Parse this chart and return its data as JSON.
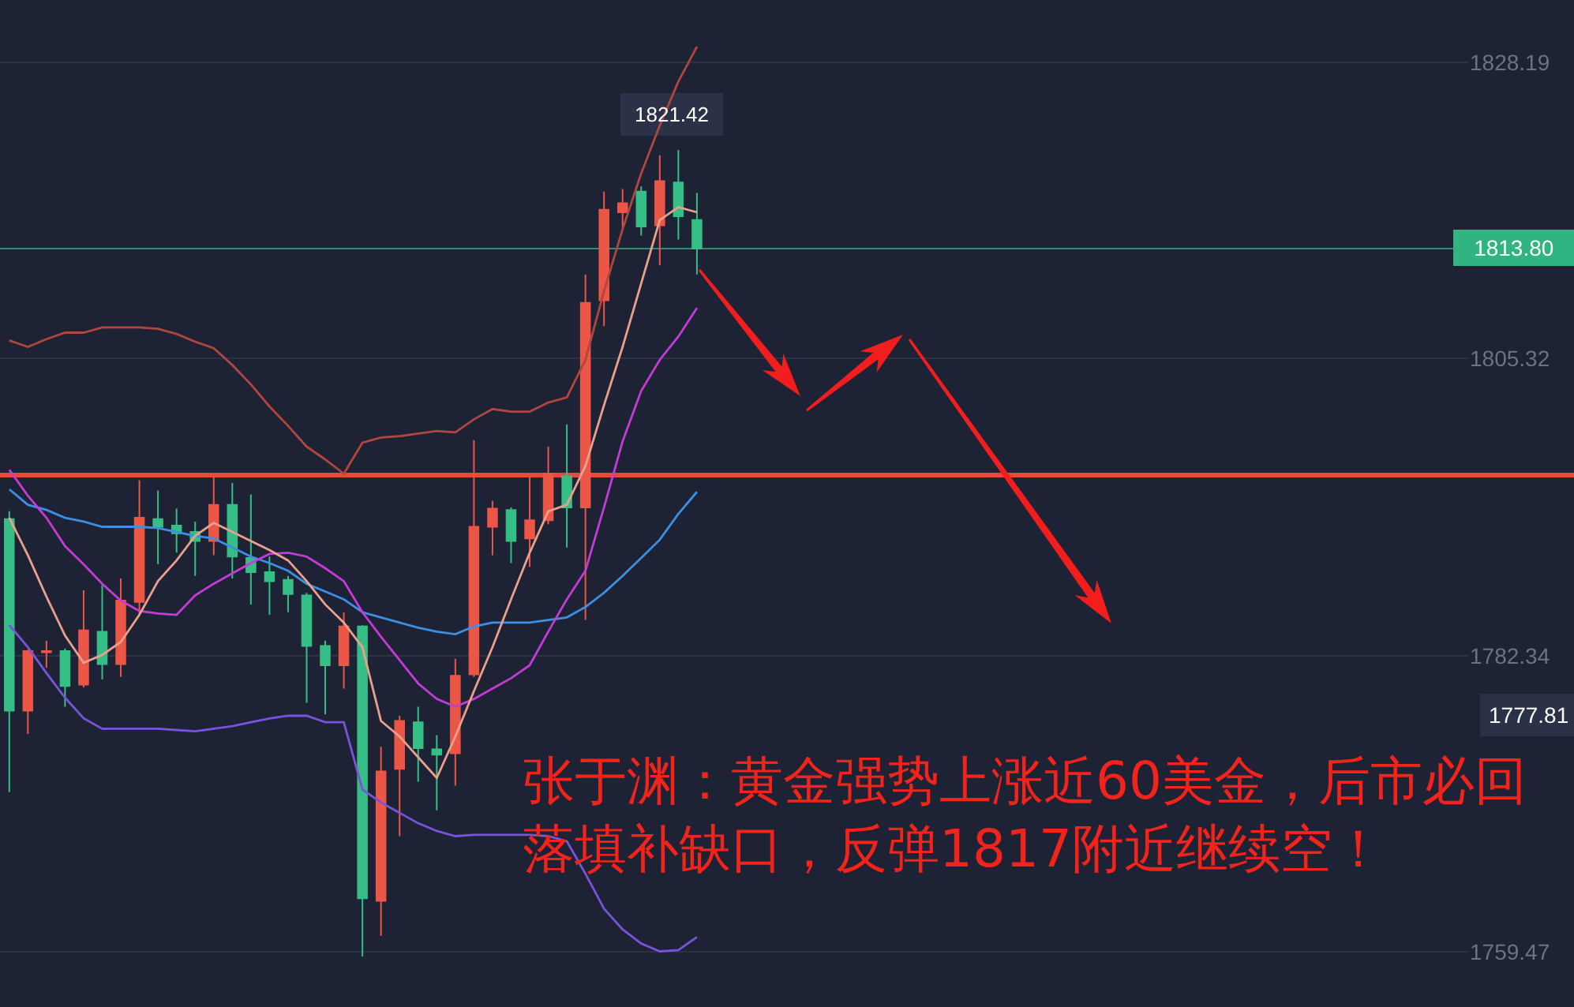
{
  "chart_data": {
    "type": "candlestick",
    "categories": [
      null,
      null,
      null,
      null,
      null,
      null,
      null,
      null,
      null,
      null,
      null,
      null,
      null,
      null,
      null,
      null,
      null,
      null,
      null,
      null,
      null,
      null,
      null,
      null,
      null,
      null,
      null,
      null,
      null,
      null,
      null,
      null,
      null,
      null,
      null,
      null,
      null,
      null,
      null,
      null,
      null,
      null,
      null,
      null,
      null,
      null,
      null,
      null,
      null,
      null,
      null,
      null,
      null,
      null,
      null,
      null,
      null,
      null,
      null,
      null,
      null,
      null,
      null,
      null,
      null,
      null,
      null,
      null,
      null,
      null,
      null,
      null,
      null,
      null,
      null,
      null,
      null,
      null,
      null
    ],
    "ohlc": [
      [
        1792.9,
        1793.5,
        1771.8,
        1778.1
      ],
      [
        1778.1,
        1782.8,
        1776.3,
        1782.7
      ],
      [
        1782.6,
        1783.5,
        1781.4,
        1782.7
      ],
      [
        1782.7,
        1782.9,
        1778.4,
        1780.0
      ],
      [
        1780.1,
        1787.4,
        1779.9,
        1784.3
      ],
      [
        1784.2,
        1787.8,
        1780.5,
        1781.7
      ],
      [
        1781.7,
        1788.3,
        1780.7,
        1786.6
      ],
      [
        1786.5,
        1795.9,
        1785.5,
        1793.0
      ],
      [
        1792.9,
        1795.1,
        1789.4,
        1792.3
      ],
      [
        1792.4,
        1793.7,
        1790.3,
        1791.8
      ],
      [
        1791.9,
        1792.7,
        1788.5,
        1791.2
      ],
      [
        1791.2,
        1796.2,
        1790.1,
        1794.0
      ],
      [
        1794.0,
        1795.7,
        1788.3,
        1790.0
      ],
      [
        1789.9,
        1794.8,
        1786.3,
        1788.8
      ],
      [
        1788.8,
        1790.0,
        1785.5,
        1788.1
      ],
      [
        1788.2,
        1788.5,
        1785.7,
        1787.1
      ],
      [
        1787.0,
        1787.2,
        1778.7,
        1783.1
      ],
      [
        1783.1,
        1783.5,
        1777.8,
        1781.6
      ],
      [
        1781.6,
        1785.7,
        1779.8,
        1784.6
      ],
      [
        1784.6,
        1784.7,
        1759.1,
        1763.6
      ],
      [
        1763.4,
        1775.3,
        1760.7,
        1773.4
      ],
      [
        1773.6,
        1777.7,
        1768.4,
        1777.3
      ],
      [
        1777.2,
        1778.4,
        1772.6,
        1775.2
      ],
      [
        1775.1,
        1776.2,
        1770.4,
        1774.7
      ],
      [
        1774.8,
        1782.1,
        1772.3,
        1780.8
      ],
      [
        1780.9,
        1799.0,
        1780.7,
        1792.3
      ],
      [
        1792.3,
        1794.3,
        1790.1,
        1793.7
      ],
      [
        1793.6,
        1793.8,
        1789.5,
        1791.2
      ],
      [
        1791.4,
        1796.2,
        1789.2,
        1792.8
      ],
      [
        1792.8,
        1798.5,
        1792.5,
        1796.4
      ],
      [
        1796.2,
        1800.2,
        1790.7,
        1793.8
      ],
      [
        1793.8,
        1811.8,
        1785.1,
        1809.6
      ],
      [
        1809.8,
        1818.2,
        1807.8,
        1816.8
      ],
      [
        1816.6,
        1818.4,
        1815.3,
        1817.3
      ],
      [
        1818.2,
        1818.6,
        1814.8,
        1815.5
      ],
      [
        1815.6,
        1821.0,
        1812.5,
        1819.0
      ],
      [
        1818.9,
        1821.42,
        1814.5,
        1816.3
      ],
      [
        1816.0,
        1818.1,
        1811.8,
        1813.8
      ],
      null,
      null,
      null,
      null,
      null,
      null,
      null,
      null,
      null,
      null,
      null,
      null,
      null,
      null,
      null,
      null,
      null,
      null,
      null,
      null,
      null,
      null,
      null,
      null,
      null,
      null,
      null,
      null,
      null,
      null,
      null,
      null,
      null,
      null,
      null,
      null,
      null,
      null,
      null,
      null,
      null
    ],
    "colors": [
      "#35be86",
      "#ec5647",
      "#ec5647",
      "#35be86",
      "#ec5647",
      "#35be86",
      "#ec5647",
      "#ec5647",
      "#35be86",
      "#35be86",
      "#35be86",
      "#ec5647",
      "#35be86",
      "#35be86",
      "#35be86",
      "#35be86",
      "#35be86",
      "#35be86",
      "#ec5647",
      "#35be86",
      "#ec5647",
      "#ec5647",
      "#35be86",
      "#35be86",
      "#ec5647",
      "#ec5647",
      "#ec5647",
      "#35be86",
      "#ec5647",
      "#ec5647",
      "#35be86",
      "#ec5647",
      "#ec5647",
      "#ec5647",
      "#35be86",
      "#ec5647",
      "#35be86",
      "#35be86",
      null,
      null,
      null,
      null,
      null,
      null,
      null,
      null,
      null,
      null,
      null,
      null,
      null,
      null,
      null,
      null,
      null,
      null,
      null,
      null,
      null,
      null,
      null,
      null,
      null,
      null,
      null,
      null,
      null,
      null,
      null,
      null,
      null,
      null,
      null,
      null,
      null,
      null,
      null,
      null,
      null
    ],
    "series": [
      {
        "type": "line",
        "color": "#b0473f",
        "values": [
          1806.7,
          1806.2,
          1806.8,
          1807.3,
          1807.3,
          1807.7,
          1807.7,
          1807.7,
          1807.6,
          1807.2,
          1806.6,
          1806.1,
          1804.8,
          1803.3,
          1801.6,
          1800.1,
          1798.5,
          1797.5,
          1796.4,
          1798.8,
          1799.2,
          1799.3,
          1799.5,
          1799.7,
          1799.6,
          1800.6,
          1801.4,
          1801.2,
          1801.2,
          1801.9,
          1802.3,
          1805.2,
          1810.5,
          1815.3,
          1819.6,
          1823.3,
          1826.7,
          1829.4,
          null,
          null,
          null,
          null,
          null,
          null,
          null,
          null,
          null,
          null,
          null,
          null,
          null,
          null,
          null,
          null,
          null,
          null,
          null,
          null,
          null,
          null,
          null,
          null,
          null,
          null,
          null,
          null,
          null,
          null,
          null,
          null,
          null,
          null,
          null,
          null,
          null,
          null,
          null,
          null,
          null
        ]
      },
      {
        "type": "line",
        "color": "#3c8fe3",
        "values": [
          1795.2,
          1794.0,
          1793.6,
          1793.0,
          1792.7,
          1792.3,
          1792.3,
          1792.3,
          1792.2,
          1791.9,
          1791.6,
          1791.4,
          1790.7,
          1790.0,
          1789.5,
          1788.9,
          1787.9,
          1787.3,
          1786.7,
          1785.7,
          1785.3,
          1784.9,
          1784.5,
          1784.2,
          1784.0,
          1784.6,
          1784.9,
          1784.9,
          1784.9,
          1785.1,
          1785.3,
          1786.1,
          1787.2,
          1788.5,
          1789.9,
          1791.3,
          1793.3,
          1795.0,
          null,
          null,
          null,
          null,
          null,
          null,
          null,
          null,
          null,
          null,
          null,
          null,
          null,
          null,
          null,
          null,
          null,
          null,
          null,
          null,
          null,
          null,
          null,
          null,
          null,
          null,
          null,
          null,
          null,
          null,
          null,
          null,
          null,
          null,
          null,
          null,
          null,
          null,
          null,
          null,
          null
        ]
      },
      {
        "type": "line",
        "color": "#c43bd6",
        "values": [
          1796.7,
          1794.7,
          1793.0,
          1790.8,
          1789.4,
          1787.9,
          1786.6,
          1785.8,
          1785.6,
          1785.5,
          1787.0,
          1787.9,
          1788.7,
          1789.5,
          1790.2,
          1790.3,
          1790.0,
          1789.1,
          1788.1,
          1785.7,
          1783.8,
          1782.0,
          1780.2,
          1779.0,
          1778.4,
          1779.0,
          1779.8,
          1780.6,
          1781.6,
          1784.2,
          1786.7,
          1788.9,
          1793.8,
          1798.9,
          1802.8,
          1805.2,
          1807.0,
          1809.2,
          null,
          null,
          null,
          null,
          null,
          null,
          null,
          null,
          null,
          null,
          null,
          null,
          null,
          null,
          null,
          null,
          null,
          null,
          null,
          null,
          null,
          null,
          null,
          null,
          null,
          null,
          null,
          null,
          null,
          null,
          null,
          null,
          null,
          null,
          null,
          null,
          null,
          null,
          null,
          null,
          null
        ]
      },
      {
        "type": "line",
        "color": "#e9a08c",
        "values": [
          1793.0,
          1790.1,
          1786.9,
          1783.9,
          1781.8,
          1782.4,
          1783.4,
          1785.5,
          1788.1,
          1789.7,
          1791.6,
          1792.6,
          1791.9,
          1791.2,
          1790.5,
          1789.7,
          1788.1,
          1786.3,
          1784.9,
          1783.0,
          1777.3,
          1776.1,
          1774.5,
          1772.9,
          1776.1,
          1779.6,
          1783.0,
          1786.7,
          1790.3,
          1793.5,
          1794.0,
          1797.0,
          1801.7,
          1806.2,
          1811.1,
          1816.0,
          1817.0,
          1816.6,
          null,
          null,
          null,
          null,
          null,
          null,
          null,
          null,
          null,
          null,
          null,
          null,
          null,
          null,
          null,
          null,
          null,
          null,
          null,
          null,
          null,
          null,
          null,
          null,
          null,
          null,
          null,
          null,
          null,
          null,
          null,
          null,
          null,
          null,
          null,
          null,
          null,
          null,
          null,
          null,
          null
        ]
      },
      {
        "type": "line",
        "color": "#7a52db",
        "values": [
          1784.7,
          1783.0,
          1781.0,
          1779.1,
          1777.5,
          1776.7,
          1776.7,
          1776.7,
          1776.7,
          1776.6,
          1776.5,
          1776.7,
          1776.9,
          1777.2,
          1777.5,
          1777.7,
          1777.7,
          1777.2,
          1777.2,
          1772.0,
          1771.0,
          1770.2,
          1769.4,
          1768.8,
          1768.4,
          1768.5,
          1768.5,
          1768.5,
          1768.5,
          1768.4,
          1768.0,
          1765.5,
          1762.8,
          1761.2,
          1760.1,
          1759.5,
          1759.6,
          1760.6,
          null,
          null,
          null,
          null,
          null,
          null,
          null,
          null,
          null,
          null,
          null,
          null,
          null,
          null,
          null,
          null,
          null,
          null,
          null,
          null,
          null,
          null,
          null,
          null,
          null,
          null,
          null,
          null,
          null,
          null,
          null,
          null,
          null,
          null,
          null,
          null,
          null,
          null,
          null,
          null,
          null
        ]
      }
    ],
    "ylim": [
      1755.2,
      1833.0
    ],
    "yticks": [
      1828.19,
      1805.32,
      1782.34,
      1759.47
    ],
    "grid": "y",
    "tick_labels": "y",
    "ref_lines": [
      {
        "axis": "y",
        "value": 1796.3,
        "color": "#e8493b"
      },
      {
        "axis": "y",
        "value": 1813.8,
        "label": "1813.80",
        "color": "#30b482"
      }
    ],
    "annotations": [
      "张于渊：黄金强势上涨近60美金，后市必回落填补缺口，反弹1817附近继续空！",
      "1821.42",
      "1777.81"
    ]
  }
}
